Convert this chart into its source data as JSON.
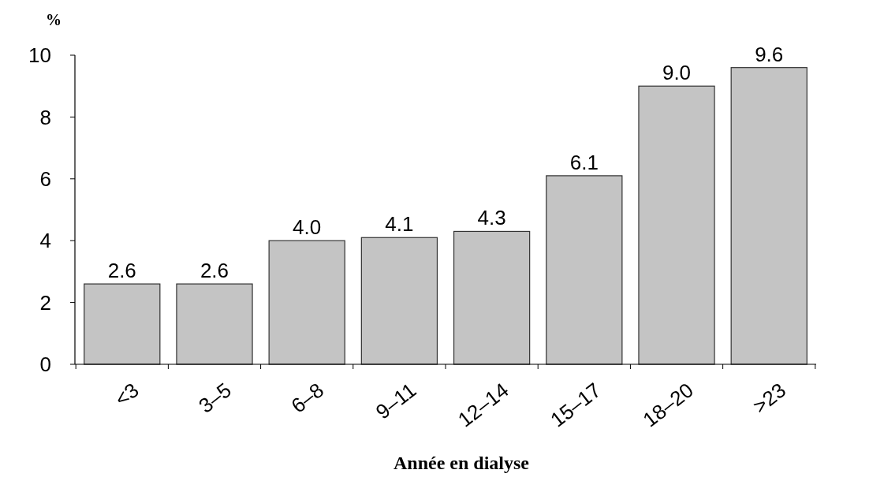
{
  "chart_data": {
    "type": "bar",
    "ylabel": "%",
    "xlabel": "Année en dialyse",
    "categories": [
      "<3",
      "3–5",
      "6–8",
      "9–11",
      "12–14",
      "15–17",
      "18–20",
      ">23"
    ],
    "values": [
      2.6,
      2.6,
      4.0,
      4.1,
      4.3,
      6.1,
      9.0,
      9.6
    ],
    "value_labels": [
      "2.6",
      "2.6",
      "4.0",
      "4.1",
      "4.3",
      "6.1",
      "9.0",
      "9.6"
    ],
    "color": "#c4c4c4",
    "ylim": [
      0,
      10
    ],
    "yticks": [
      0,
      2,
      4,
      6,
      8,
      10
    ]
  }
}
